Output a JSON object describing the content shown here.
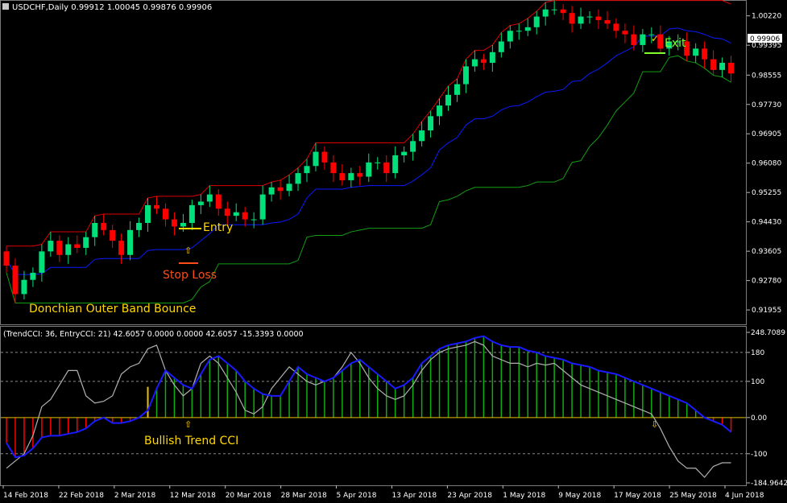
{
  "main_header": "USDCHF,Daily  0.99912 1.00045 0.99876 0.99906",
  "indicator_header": "(TrendCCI: 36, EntryCCI: 21)  42.6057 0.0000 0.0000 42.6057 -15.3393 0.0000",
  "current_price": "0.99906",
  "colors": {
    "bull": "#00e07a",
    "bear": "#ff0000",
    "upper_band": "#dd0000",
    "middle_band": "#0a1aff",
    "lower_band": "#139d13",
    "trend_cci": "#1a1aff",
    "entry_cci": "#b0b0b0",
    "hist_pos": "#0fae0f",
    "hist_neg": "#ff0000",
    "zero_line": "#e8c000",
    "annotation": "#ffd800",
    "stop_loss": "#ff4a1a",
    "exit": "#7dff2a"
  },
  "annotations": {
    "entry": "Entry",
    "stop_loss": "Stop Loss",
    "exit": "Exit",
    "outer_band_bounce": "Donchian Outer Band Bounce",
    "bullish_trend_cci": "Bullish Trend CCI"
  },
  "chart_data": [
    {
      "type": "candlestick",
      "symbol": "USDCHF",
      "timeframe": "Daily",
      "price_ticks": [
        "1.00220",
        "0.99395",
        "0.98555",
        "0.97730",
        "0.96905",
        "0.96080",
        "0.95255",
        "0.94430",
        "0.93605",
        "0.92780",
        "0.91955"
      ],
      "ylim": [
        0.9155,
        1.0062
      ],
      "x_labels": [
        "14 Feb 2018",
        "22 Feb 2018",
        "2 Mar 2018",
        "12 Mar 2018",
        "20 Mar 2018",
        "28 Mar 2018",
        "5 Apr 2018",
        "13 Apr 2018",
        "23 Apr 2018",
        "1 May 2018",
        "9 May 2018",
        "17 May 2018",
        "25 May 2018",
        "4 Jun 2018"
      ],
      "close": [
        0.932,
        0.924,
        0.928,
        0.93,
        0.936,
        0.939,
        0.935,
        0.938,
        0.937,
        0.94,
        0.944,
        0.942,
        0.939,
        0.935,
        0.942,
        0.944,
        0.949,
        0.948,
        0.945,
        0.943,
        0.944,
        0.949,
        0.95,
        0.952,
        0.948,
        0.946,
        0.947,
        0.945,
        0.945,
        0.952,
        0.954,
        0.953,
        0.955,
        0.958,
        0.96,
        0.964,
        0.961,
        0.958,
        0.956,
        0.958,
        0.957,
        0.961,
        0.961,
        0.958,
        0.963,
        0.964,
        0.967,
        0.97,
        0.974,
        0.977,
        0.98,
        0.983,
        0.988,
        0.99,
        0.989,
        0.992,
        0.995,
        0.998,
        0.998,
        0.999,
        1.002,
        1.004,
        1.004,
        1.003,
        1.0,
        1.002,
        1.002,
        1.001,
        1.0,
        0.998,
        0.997,
        0.994,
        0.997,
        0.997,
        0.993,
        0.995,
        0.995,
        0.991,
        0.993,
        0.99,
        0.987,
        0.989,
        0.986
      ],
      "trend_cci_range": [
        -184.9642,
        248.7089
      ]
    },
    {
      "type": "line",
      "name": "TrendCCI",
      "ylim": [
        -184.9642,
        248.7089
      ],
      "y_ticks": [
        "248.7089",
        "180",
        "100",
        "0.00",
        "-100",
        "-184.9642"
      ],
      "trend_cci": [
        -70,
        -110,
        -105,
        -85,
        -55,
        -50,
        -50,
        -45,
        -40,
        -30,
        -10,
        0,
        -15,
        -15,
        -10,
        0,
        20,
        80,
        130,
        110,
        90,
        80,
        120,
        160,
        170,
        150,
        130,
        100,
        80,
        65,
        60,
        60,
        100,
        140,
        120,
        110,
        100,
        110,
        130,
        150,
        160,
        140,
        120,
        100,
        80,
        90,
        110,
        150,
        170,
        190,
        200,
        205,
        210,
        220,
        225,
        210,
        200,
        195,
        195,
        185,
        180,
        170,
        165,
        160,
        150,
        145,
        140,
        130,
        125,
        120,
        110,
        100,
        90,
        80,
        70,
        60,
        50,
        40,
        20,
        0,
        -10,
        -20,
        -40
      ],
      "entry_cci": [
        -140,
        -120,
        -100,
        -50,
        30,
        50,
        90,
        130,
        130,
        60,
        40,
        45,
        60,
        120,
        140,
        150,
        190,
        200,
        130,
        90,
        60,
        80,
        150,
        170,
        150,
        110,
        70,
        20,
        10,
        30,
        80,
        110,
        140,
        120,
        100,
        90,
        100,
        110,
        140,
        180,
        150,
        110,
        80,
        60,
        50,
        60,
        90,
        130,
        160,
        180,
        190,
        195,
        200,
        210,
        200,
        170,
        160,
        150,
        150,
        140,
        150,
        145,
        150,
        130,
        110,
        90,
        80,
        70,
        60,
        50,
        40,
        30,
        20,
        10,
        -30,
        -80,
        -120,
        -140,
        -140,
        -165,
        -135,
        -125,
        -125
      ]
    }
  ]
}
